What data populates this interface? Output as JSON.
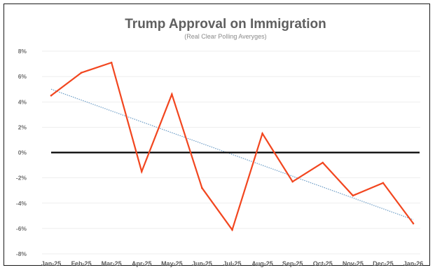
{
  "chart_data": {
    "type": "line",
    "title": "Trump Approval on Immigration",
    "subtitle": "(Real Clear Polling Averyges)",
    "categories": [
      "Jan-25",
      "Feb-25",
      "Mar-25",
      "Apr-25",
      "May-25",
      "Jun-25",
      "Jul-25",
      "Aug-25",
      "Sep-25",
      "Oct-25",
      "Nov-25",
      "Dec-25",
      "Jan-26"
    ],
    "series": [
      {
        "values": [
          4.5,
          6.3,
          7.1,
          -1.5,
          4.6,
          -2.8,
          -6.1,
          1.5,
          -2.3,
          -0.8,
          -3.4,
          -2.4,
          -5.6
        ]
      }
    ],
    "trendline": {
      "start": 5.0,
      "end": -5.3
    },
    "reference_line": 0,
    "ylim": [
      -8,
      8
    ],
    "yticks": [
      "8%",
      "6%",
      "4%",
      "2%",
      "0%",
      "-2%",
      "-4%",
      "-6%",
      "-8%"
    ],
    "ytick_values": [
      8,
      6,
      4,
      2,
      0,
      -2,
      -4,
      -6,
      -8
    ],
    "grid": true,
    "colors": {
      "series": "#f2461f",
      "trendline": "#6b9cc6",
      "reference": "#000000",
      "grid": "#dcdcdc"
    }
  }
}
